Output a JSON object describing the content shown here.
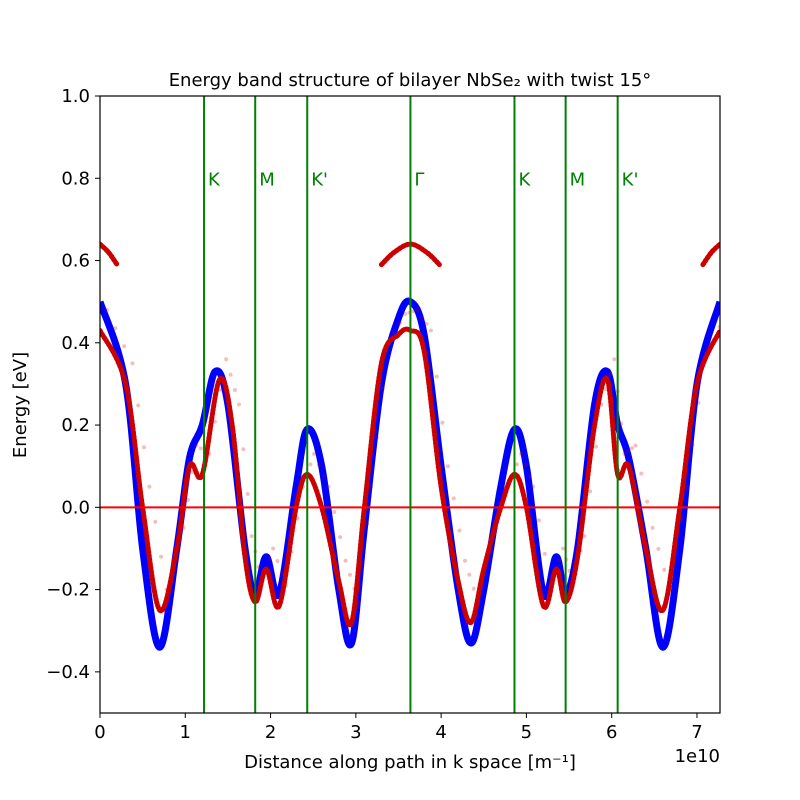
{
  "chart_data": {
    "type": "line",
    "title": "Energy band structure of bilayer NbSe₂ with twist 15°",
    "xlabel": "Distance along path in k space [m⁻¹]",
    "ylabel": "Energy [eV]",
    "x_offset_label": "1e10",
    "xlim": [
      0,
      7.27
    ],
    "ylim": [
      -0.5,
      1.0
    ],
    "xticks": [
      "0",
      "1",
      "2",
      "3",
      "4",
      "5",
      "6",
      "7"
    ],
    "yticks": [
      "−0.4",
      "−0.2",
      "0.0",
      "0.2",
      "0.4",
      "0.6",
      "0.8",
      "1.0"
    ],
    "fermi_level": 0.0,
    "colors": {
      "monolayer": "#0000ff",
      "bilayer": "#cc0000",
      "kpoints": "#008000",
      "fermi": "#ff0000"
    },
    "k_points": [
      {
        "label": "K",
        "x": 1.22
      },
      {
        "label": "M",
        "x": 1.82
      },
      {
        "label": "K'",
        "x": 2.43
      },
      {
        "label": "Γ",
        "x": 3.64
      },
      {
        "label": "K",
        "x": 4.86
      },
      {
        "label": "M",
        "x": 5.46
      },
      {
        "label": "K'",
        "x": 6.07
      }
    ],
    "series": [
      {
        "values_x": [
          0.0,
          0.3,
          0.5,
          0.7,
          0.9,
          1.05,
          1.2,
          1.35,
          1.5,
          1.7,
          1.82,
          1.95,
          2.1,
          2.3,
          2.43,
          2.6,
          2.8,
          2.95,
          3.1,
          3.3,
          3.5,
          3.64,
          3.8,
          4.0,
          4.2,
          4.35,
          4.5,
          4.7,
          4.86,
          5.0,
          5.2,
          5.35,
          5.46,
          5.6,
          5.8,
          5.95,
          6.07,
          6.2,
          6.4,
          6.6,
          6.8,
          7.0,
          7.27
        ],
        "values_y": [
          0.5,
          0.3,
          -0.1,
          -0.34,
          -0.1,
          0.12,
          0.2,
          0.33,
          0.25,
          -0.1,
          -0.21,
          -0.12,
          -0.21,
          0.05,
          0.19,
          0.1,
          -0.2,
          -0.33,
          -0.05,
          0.3,
          0.46,
          0.5,
          0.42,
          0.1,
          -0.2,
          -0.33,
          -0.2,
          0.05,
          0.19,
          0.1,
          -0.21,
          -0.12,
          -0.21,
          -0.1,
          0.25,
          0.33,
          0.2,
          0.12,
          -0.1,
          -0.34,
          -0.1,
          0.3,
          0.5
        ]
      },
      {
        "values_x": [
          0.0,
          0.3,
          0.5,
          0.7,
          0.9,
          1.05,
          1.2,
          1.4,
          1.55,
          1.7,
          1.82,
          1.95,
          2.1,
          2.3,
          2.43,
          2.6,
          2.8,
          2.95,
          3.1,
          3.3,
          3.5,
          3.64,
          3.8,
          4.0,
          4.2,
          4.35,
          4.5,
          4.7,
          4.86,
          5.0,
          5.2,
          5.35,
          5.46,
          5.6,
          5.8,
          5.95,
          6.07,
          6.2,
          6.4,
          6.6,
          6.8,
          7.0,
          7.27
        ],
        "values_y": [
          0.43,
          0.3,
          0.0,
          -0.25,
          -0.1,
          0.1,
          0.08,
          0.31,
          0.2,
          -0.12,
          -0.23,
          -0.15,
          -0.24,
          0.0,
          0.08,
          0.0,
          -0.18,
          -0.28,
          0.0,
          0.35,
          0.42,
          0.43,
          0.38,
          0.05,
          -0.18,
          -0.28,
          -0.15,
          0.0,
          0.08,
          0.0,
          -0.24,
          -0.15,
          -0.23,
          -0.12,
          0.2,
          0.31,
          0.08,
          0.1,
          -0.1,
          -0.25,
          0.0,
          0.3,
          0.43
        ]
      },
      {
        "values_x": [
          0.0,
          0.1,
          0.2,
          3.3,
          3.45,
          3.64,
          3.83,
          3.98,
          7.07,
          7.17,
          7.27
        ],
        "values_y": [
          0.64,
          0.62,
          0.59,
          0.59,
          0.62,
          0.64,
          0.62,
          0.59,
          0.59,
          0.62,
          0.64
        ]
      }
    ]
  }
}
